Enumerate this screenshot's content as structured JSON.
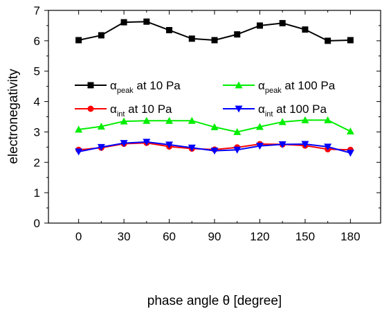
{
  "chart_data": {
    "type": "line",
    "xlabel": "phase angle θ [degree]",
    "ylabel": "electronegativity",
    "xlim": [
      -20,
      200
    ],
    "ylim": [
      0,
      7
    ],
    "xticks": [
      0,
      30,
      60,
      90,
      120,
      150,
      180
    ],
    "yticks": [
      0,
      1,
      2,
      3,
      4,
      5,
      6,
      7
    ],
    "grid": false,
    "legend_position": "center, two columns",
    "x": [
      0,
      15,
      30,
      45,
      60,
      75,
      90,
      105,
      120,
      135,
      150,
      165,
      180
    ],
    "series": [
      {
        "name": "α_peak at 10 Pa",
        "name_base": "α",
        "name_sub": "peak",
        "name_rest": " at 10 Pa",
        "color": "#000000",
        "marker": "square",
        "values": [
          6.02,
          6.18,
          6.61,
          6.63,
          6.35,
          6.07,
          6.02,
          6.21,
          6.5,
          6.58,
          6.37,
          6.0,
          6.02
        ]
      },
      {
        "name": "α_peak at 100 Pa",
        "name_base": "α",
        "name_sub": "peak",
        "name_rest": " at 100 Pa",
        "color": "#00ee00",
        "marker": "triangle-up",
        "values": [
          3.08,
          3.18,
          3.35,
          3.37,
          3.37,
          3.37,
          3.16,
          3.0,
          3.17,
          3.33,
          3.39,
          3.39,
          3.02
        ]
      },
      {
        "name": "α_int at 10 Pa",
        "name_base": "α",
        "name_sub": "int",
        "name_rest": " at 10 Pa",
        "color": "#ff0000",
        "marker": "circle",
        "values": [
          2.41,
          2.48,
          2.61,
          2.64,
          2.52,
          2.45,
          2.42,
          2.49,
          2.6,
          2.59,
          2.55,
          2.43,
          2.41
        ]
      },
      {
        "name": "α_int at 100 Pa",
        "name_base": "α",
        "name_sub": "int",
        "name_rest": " at 100 Pa",
        "color": "#0000ff",
        "marker": "triangle-down",
        "values": [
          2.35,
          2.5,
          2.63,
          2.67,
          2.58,
          2.48,
          2.38,
          2.41,
          2.54,
          2.59,
          2.6,
          2.51,
          2.31
        ]
      }
    ]
  }
}
